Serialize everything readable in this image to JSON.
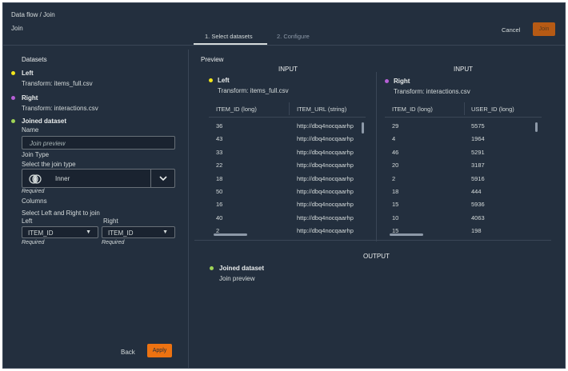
{
  "header": {
    "breadcrumb": "Data flow / Join",
    "title": "Join",
    "tabs": [
      {
        "label": "1. Select datasets",
        "active": true
      },
      {
        "label": "2. Configure",
        "active": false
      }
    ],
    "cancel_label": "Cancel",
    "join_label": "Join"
  },
  "left": {
    "section_title": "Datasets",
    "left_dataset": {
      "label": "Left",
      "transform": "Transform: items_full.csv",
      "dot_color": "#f2e51b"
    },
    "right_dataset": {
      "label": "Right",
      "transform": "Transform: interactions.csv",
      "dot_color": "#b65fd6"
    },
    "joined": {
      "label": "Joined dataset",
      "dot_color": "#9fd356",
      "name_label": "Name",
      "name_placeholder": "Join preview",
      "join_type_label": "Join Type",
      "join_type_select_label": "Select the join type",
      "join_type_value": "Inner",
      "join_type_required": "Required",
      "columns_label": "Columns",
      "columns_select_label": "Select Left and Right to join",
      "left_col_label": "Left",
      "left_col_value": "ITEM_ID",
      "left_col_required": "Required",
      "right_col_label": "Right",
      "right_col_value": "ITEM_ID",
      "right_col_required": "Required"
    },
    "back_label": "Back",
    "apply_label": "Apply"
  },
  "preview": {
    "title": "Preview",
    "input_label": "INPUT",
    "left": {
      "label": "Left",
      "transform": "Transform: items_full.csv",
      "columns": [
        "ITEM_ID (long)",
        "ITEM_URL (string)"
      ],
      "rows": [
        [
          "36",
          "http://dbq4nocqaarhp"
        ],
        [
          "43",
          "http://dbq4nocqaarhp"
        ],
        [
          "33",
          "http://dbq4nocqaarhp"
        ],
        [
          "22",
          "http://dbq4nocqaarhp"
        ],
        [
          "18",
          "http://dbq4nocqaarhp"
        ],
        [
          "50",
          "http://dbq4nocqaarhp"
        ],
        [
          "16",
          "http://dbq4nocqaarhp"
        ],
        [
          "40",
          "http://dbq4nocqaarhp"
        ],
        [
          "2",
          "http://dbq4nocqaarhp"
        ]
      ]
    },
    "right": {
      "label": "Right",
      "transform": "Transform: interactions.csv",
      "columns": [
        "ITEM_ID (long)",
        "USER_ID (long)"
      ],
      "rows": [
        [
          "29",
          "5575"
        ],
        [
          "4",
          "1964"
        ],
        [
          "46",
          "5291"
        ],
        [
          "20",
          "3187"
        ],
        [
          "2",
          "5916"
        ],
        [
          "18",
          "444"
        ],
        [
          "15",
          "5936"
        ],
        [
          "10",
          "4063"
        ],
        [
          "15",
          "198"
        ]
      ]
    },
    "output_label": "OUTPUT",
    "output": {
      "label": "Joined dataset",
      "sub": "Join preview"
    }
  }
}
